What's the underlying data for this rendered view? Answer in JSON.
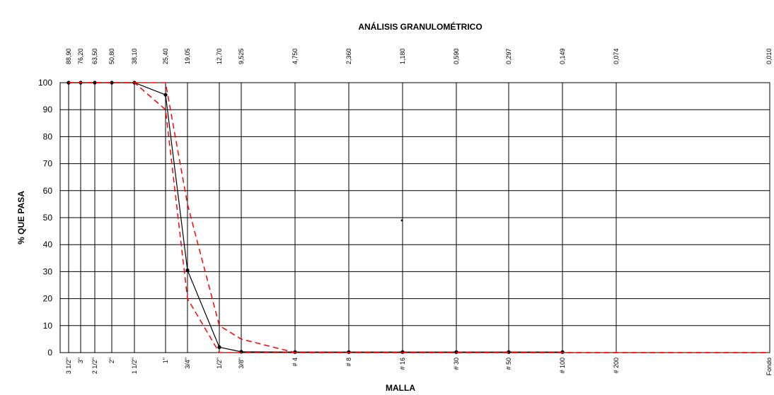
{
  "chart_data": {
    "type": "line",
    "title": "ANÁLISIS GRANULOMÉTRICO",
    "xlabel": "MALLA",
    "ylabel": "% QUE PASA",
    "ylim": [
      0,
      100
    ],
    "yticks": [
      0,
      10,
      20,
      30,
      40,
      50,
      60,
      70,
      80,
      90,
      100
    ],
    "grid": true,
    "sieves": [
      "3 1/2\"",
      "3\"",
      "2 1/2\"",
      "2\"",
      "1 1/2\"",
      "1\"",
      "3/4\"",
      "1/2\"",
      "3/8\"",
      "# 4",
      "# 8",
      "# 16",
      "# 30",
      "# 50",
      "# 100",
      "# 200",
      "Fondo"
    ],
    "openings_mm": [
      "88,90",
      "76,20",
      "63,50",
      "50,80",
      "38,10",
      "25,40",
      "19,05",
      "12,70",
      "9,525",
      "4,750",
      "2,360",
      "1,180",
      "0,590",
      "0,297",
      "0,149",
      "0,074",
      "0,010"
    ],
    "series": [
      {
        "style": "solid",
        "color": "#000000",
        "markers": true,
        "values": [
          100,
          100,
          100,
          100,
          100,
          95.5,
          30.5,
          2,
          0.3,
          0.2,
          0.2,
          0.2,
          0.2,
          0.2,
          0.2
        ]
      },
      {
        "style": "dashed",
        "color": "#ff0000",
        "markers": false,
        "values": [
          100,
          100,
          100,
          100,
          100,
          100,
          55,
          10,
          5,
          0,
          0,
          0,
          0,
          0,
          0,
          0,
          0
        ]
      },
      {
        "style": "dashed",
        "color": "#ff0000",
        "markers": false,
        "values": [
          100,
          100,
          100,
          100,
          100,
          90,
          20,
          0,
          0,
          0,
          0,
          0,
          0,
          0,
          0,
          0,
          0
        ]
      }
    ],
    "stray_point": {
      "sieve": "# 16",
      "y": 49
    }
  }
}
